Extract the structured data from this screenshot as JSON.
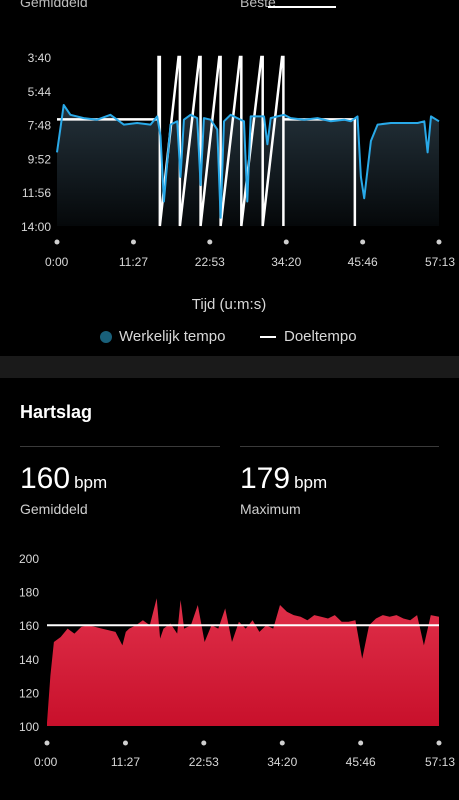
{
  "top": {
    "left_label": "Gemiddeld",
    "right_label": "Beste"
  },
  "pace_chart": {
    "y_ticks": [
      "3:40",
      "5:44",
      "7:48",
      "9:52",
      "11:56",
      "14:00"
    ],
    "x_ticks": [
      "0:00",
      "11:27",
      "22:53",
      "34:20",
      "45:46",
      "57:13"
    ],
    "xlabel": "Tijd (u:m:s)",
    "legend": {
      "actual": "Werkelijk tempo",
      "target": "Doeltempo"
    },
    "colors": {
      "actual": "#29a9e8",
      "target": "#ffffff",
      "fill_top": "#24323b"
    }
  },
  "heart_rate": {
    "title": "Hartslag",
    "average": {
      "value": "160",
      "unit": "bpm",
      "label": "Gemiddeld"
    },
    "maximum": {
      "value": "179",
      "unit": "bpm",
      "label": "Maximum"
    }
  },
  "chart_data": [
    {
      "type": "line",
      "x_ticks": [
        "0:00",
        "11:27",
        "22:53",
        "34:20",
        "45:46",
        "57:13"
      ],
      "y_ticks": [
        "3:40",
        "5:44",
        "7:48",
        "9:52",
        "11:56",
        "14:00"
      ],
      "xlabel": "Tijd (u:m:s)",
      "ylabel": "",
      "y_inverted": true,
      "series": [
        {
          "name": "Werkelijk tempo",
          "x_min": [
            0,
            1,
            2,
            4,
            6,
            8,
            10,
            12,
            14,
            15,
            15.5,
            16,
            17,
            18,
            18.5,
            19,
            20,
            21,
            21.5,
            22,
            23,
            24,
            24.5,
            25,
            26,
            27,
            28,
            28.5,
            29,
            30,
            31,
            31.5,
            32,
            33,
            34,
            35,
            37,
            39,
            41,
            43,
            44,
            45,
            45.5,
            46,
            47,
            48,
            50,
            52,
            54,
            55,
            55.5,
            56,
            57.2
          ],
          "pace_min": [
            9.5,
            6.6,
            7.2,
            7.4,
            7.5,
            7.2,
            7.8,
            7.7,
            7.8,
            7.3,
            8.5,
            12.5,
            7.8,
            7.6,
            11.0,
            7.5,
            7.2,
            7.4,
            11.5,
            7.4,
            7.5,
            8.1,
            13.5,
            7.6,
            7.2,
            7.4,
            7.6,
            12.5,
            7.3,
            7.3,
            7.3,
            9.0,
            7.4,
            7.3,
            7.2,
            7.4,
            7.5,
            7.4,
            7.6,
            7.5,
            7.6,
            7.3,
            11.0,
            12.3,
            8.8,
            7.8,
            7.7,
            7.7,
            7.7,
            7.6,
            9.5,
            7.3,
            7.6
          ]
        },
        {
          "name": "Doeltempo",
          "segments": [
            {
              "from": 0,
              "to": 15.2,
              "pace_min": 7.48
            },
            {
              "from": 15.2,
              "to": 15.4,
              "pace_min": 3.67
            },
            {
              "from": 18.2,
              "to": 18.4,
              "pace_min": 3.67
            },
            {
              "from": 21.3,
              "to": 21.5,
              "pace_min": 3.67
            },
            {
              "from": 24.3,
              "to": 24.5,
              "pace_min": 3.67
            },
            {
              "from": 27.4,
              "to": 27.6,
              "pace_min": 3.67
            },
            {
              "from": 30.6,
              "to": 30.8,
              "pace_min": 3.67
            },
            {
              "from": 33.7,
              "to": 33.9,
              "pace_min": 3.67
            },
            {
              "from": 33.9,
              "to": 44.6,
              "pace_min": 7.48
            }
          ]
        }
      ]
    },
    {
      "type": "area",
      "x_ticks": [
        "0:00",
        "11:27",
        "22:53",
        "34:20",
        "45:46",
        "57:13"
      ],
      "y_ticks": [
        200,
        180,
        160,
        140,
        120,
        100
      ],
      "ylim": [
        100,
        200
      ],
      "target_line": 160,
      "series": [
        {
          "name": "",
          "x_min": [
            0,
            0.5,
            1,
            2,
            3,
            4,
            5,
            6,
            7,
            8,
            9,
            10,
            11,
            11.5,
            12,
            13,
            14,
            15,
            16,
            16.5,
            17,
            18,
            19,
            19.5,
            20,
            21,
            22,
            23,
            24,
            25,
            26,
            27,
            28,
            29,
            30,
            31,
            32,
            33,
            34,
            35,
            36,
            37,
            38,
            39,
            40,
            41,
            42,
            43,
            44,
            45,
            46,
            47,
            48,
            49,
            50,
            51,
            52,
            53,
            54,
            55,
            56,
            57.2
          ],
          "bpm": [
            102,
            130,
            150,
            153,
            158,
            155,
            159,
            160,
            159,
            158,
            157,
            156,
            148,
            156,
            158,
            160,
            163,
            160,
            176,
            152,
            158,
            161,
            155,
            175,
            158,
            160,
            172,
            150,
            160,
            158,
            170,
            150,
            162,
            158,
            163,
            156,
            160,
            158,
            172,
            168,
            166,
            165,
            163,
            166,
            165,
            164,
            166,
            162,
            162,
            163,
            140,
            160,
            164,
            166,
            165,
            166,
            164,
            163,
            166,
            148,
            166,
            165
          ]
        }
      ]
    }
  ]
}
